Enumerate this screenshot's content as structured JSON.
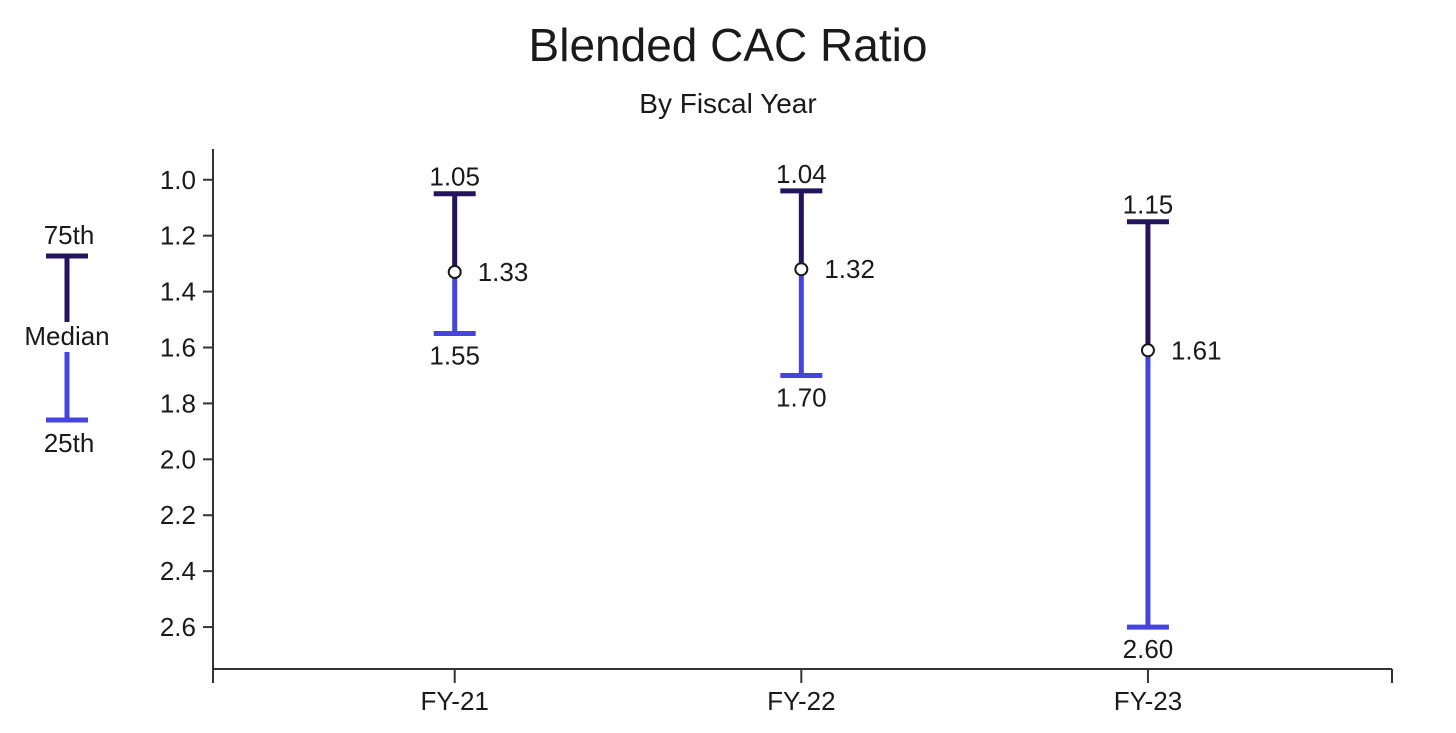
{
  "chart_data": {
    "type": "range",
    "title": "Blended CAC Ratio",
    "subtitle": "By Fiscal Year",
    "categories": [
      "FY-21",
      "FY-22",
      "FY-23"
    ],
    "series": [
      {
        "name": "75th",
        "values": [
          1.05,
          1.04,
          1.15
        ]
      },
      {
        "name": "Median",
        "values": [
          1.33,
          1.32,
          1.61
        ]
      },
      {
        "name": "25th",
        "values": [
          1.55,
          1.7,
          2.6
        ]
      }
    ],
    "value_labels": {
      "p75": [
        "1.05",
        "1.04",
        "1.15"
      ],
      "median": [
        "1.33",
        "1.32",
        "1.61"
      ],
      "p25": [
        "1.55",
        "1.70",
        "2.60"
      ]
    },
    "y_ticks": [
      "1.0",
      "1.2",
      "1.4",
      "1.6",
      "1.8",
      "2.0",
      "2.2",
      "2.4",
      "2.6"
    ],
    "ylim": [
      0.89,
      2.75
    ],
    "y_inverted": true,
    "legend": {
      "position": "left",
      "top_label": "75th",
      "middle_label": "Median",
      "bottom_label": "25th"
    },
    "colors": {
      "upper": "#24145e",
      "lower": "#4545dd",
      "axis": "#333333"
    },
    "grid": false
  }
}
